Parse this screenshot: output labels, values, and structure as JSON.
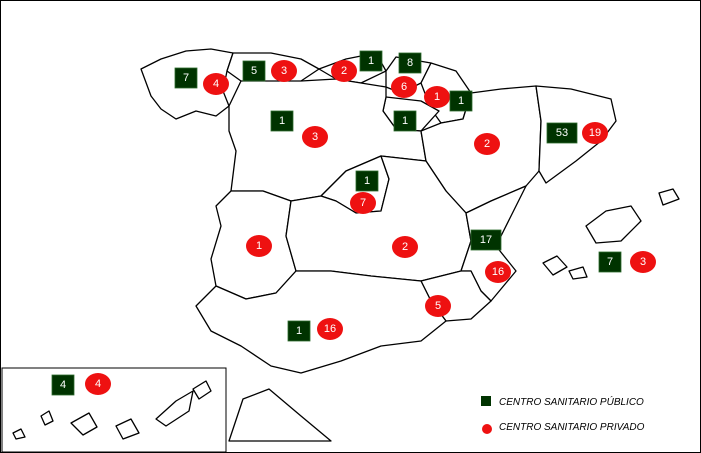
{
  "colors": {
    "public": "#003300",
    "private": "#ee1111"
  },
  "legend": {
    "public_label": "CENTRO SANITARIO PÚBLICO",
    "private_label": "CENTRO SANITARIO PRIVADO"
  },
  "markers": [
    {
      "type": "public",
      "value": "7"
    },
    {
      "type": "private",
      "value": "4"
    },
    {
      "type": "public",
      "value": "5"
    },
    {
      "type": "private",
      "value": "3"
    },
    {
      "type": "private",
      "value": "2"
    },
    {
      "type": "public",
      "value": "1"
    },
    {
      "type": "public",
      "value": "8"
    },
    {
      "type": "private",
      "value": "6"
    },
    {
      "type": "private",
      "value": "1"
    },
    {
      "type": "public",
      "value": "1"
    },
    {
      "type": "public",
      "value": "1"
    },
    {
      "type": "public",
      "value": "1"
    },
    {
      "type": "private",
      "value": "3"
    },
    {
      "type": "private",
      "value": "2"
    },
    {
      "type": "public",
      "value": "53"
    },
    {
      "type": "private",
      "value": "19"
    },
    {
      "type": "public",
      "value": "1"
    },
    {
      "type": "private",
      "value": "7"
    },
    {
      "type": "private",
      "value": "1"
    },
    {
      "type": "private",
      "value": "2"
    },
    {
      "type": "public",
      "value": "17"
    },
    {
      "type": "private",
      "value": "16"
    },
    {
      "type": "public",
      "value": "7"
    },
    {
      "type": "private",
      "value": "3"
    },
    {
      "type": "private",
      "value": "5"
    },
    {
      "type": "public",
      "value": "1"
    },
    {
      "type": "private",
      "value": "16"
    },
    {
      "type": "public",
      "value": "4"
    },
    {
      "type": "private",
      "value": "4"
    }
  ]
}
